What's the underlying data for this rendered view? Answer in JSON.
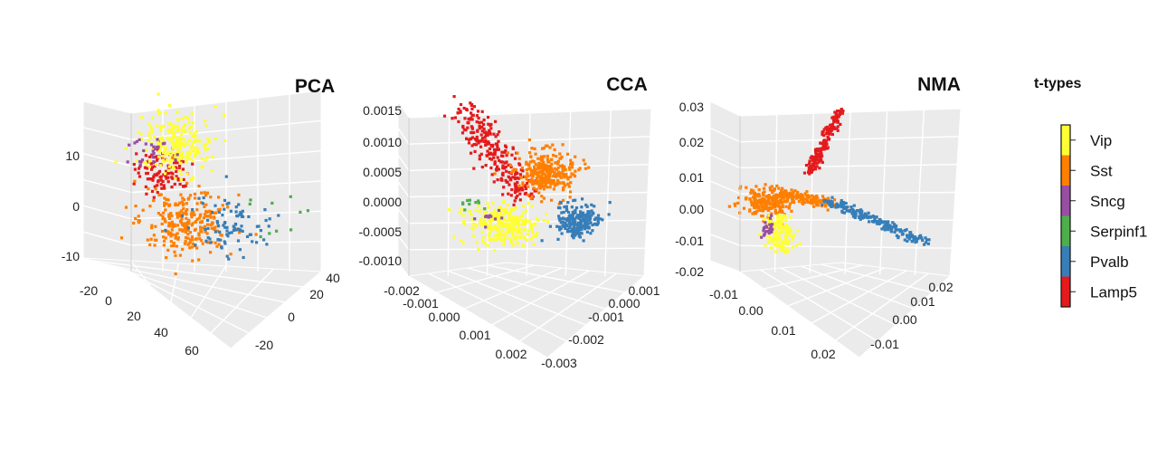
{
  "legend": {
    "title": "t-types",
    "items": [
      {
        "label": "Vip",
        "color": "#ffff33"
      },
      {
        "label": "Sst",
        "color": "#ff7f00"
      },
      {
        "label": "Sncg",
        "color": "#984ea3"
      },
      {
        "label": "Serpinf1",
        "color": "#4daf4a"
      },
      {
        "label": "Pvalb",
        "color": "#377eb8"
      },
      {
        "label": "Lamp5",
        "color": "#e41a1c"
      }
    ]
  },
  "chart_data": [
    {
      "type": "scatter",
      "title": "PCA",
      "axes": {
        "vertical": {
          "ticks": [
            "10",
            "0",
            "-10"
          ]
        },
        "left_depth": {
          "ticks": [
            "-20",
            "0",
            "20",
            "40",
            "60"
          ]
        },
        "right_depth": {
          "ticks": [
            "40",
            "20",
            "0",
            "-20"
          ]
        }
      },
      "clusters": [
        {
          "series": "Lamp5",
          "center": [
            -6,
            8,
            5
          ],
          "count": 110
        },
        {
          "series": "Vip",
          "center": [
            -2,
            6,
            15
          ],
          "count": 230
        },
        {
          "series": "Sst",
          "center": [
            0,
            4,
            -5
          ],
          "count": 270
        },
        {
          "series": "Pvalb",
          "center": [
            20,
            10,
            -6
          ],
          "count": 90
        },
        {
          "series": "Sncg",
          "center": [
            -8,
            4,
            10
          ],
          "count": 25
        },
        {
          "series": "Serpinf1",
          "center": [
            10,
            20,
            -2
          ],
          "count": 10
        }
      ]
    },
    {
      "type": "scatter",
      "title": "CCA",
      "axes": {
        "vertical": {
          "ticks": [
            "0.0015",
            "0.0010",
            "0.0005",
            "0.0000",
            "-0.0005",
            "-0.0010"
          ]
        },
        "left_depth": {
          "ticks": [
            "-0.002",
            "-0.001",
            "0.000",
            "0.001",
            "0.002"
          ]
        },
        "right_depth": {
          "ticks": [
            "0.001",
            "0.000",
            "-0.001",
            "-0.002",
            "-0.003"
          ]
        }
      },
      "clusters": [
        {
          "series": "Lamp5",
          "center": [
            -0.001,
            0.0007,
            0.0009
          ],
          "count": 260
        },
        {
          "series": "Sst",
          "center": [
            0.0005,
            0.0005,
            0.0006
          ],
          "count": 300
        },
        {
          "series": "Vip",
          "center": [
            0.0005,
            -0.001,
            -0.0004
          ],
          "count": 280
        },
        {
          "series": "Pvalb",
          "center": [
            0.0015,
            -0.0012,
            0.0002
          ],
          "count": 220
        },
        {
          "series": "Serpinf1",
          "center": [
            -0.0002,
            -0.0005,
            -0.0001
          ],
          "count": 10
        },
        {
          "series": "Sncg",
          "center": [
            0.0003,
            -0.0008,
            -0.0002
          ],
          "count": 10
        }
      ]
    },
    {
      "type": "scatter",
      "title": "NMA",
      "axes": {
        "vertical": {
          "ticks": [
            "0.03",
            "0.02",
            "0.01",
            "0.00",
            "-0.01",
            "-0.02"
          ]
        },
        "left_depth": {
          "ticks": [
            "-0.01",
            "0.00",
            "0.01",
            "0.02"
          ]
        },
        "right_depth": {
          "ticks": [
            "0.02",
            "0.01",
            "0.00",
            "-0.01"
          ]
        }
      },
      "clusters": [
        {
          "series": "Lamp5",
          "shape": "arm",
          "from": [
            0.0,
            0.005,
            0.005
          ],
          "to": [
            0.008,
            0.018,
            0.028
          ],
          "count": 170
        },
        {
          "series": "Sst",
          "shape": "blob",
          "center": [
            0.0,
            0.0,
            0.001
          ],
          "count": 230
        },
        {
          "series": "Sst",
          "shape": "arm",
          "from": [
            0.0,
            0.0,
            0.001
          ],
          "to": [
            0.012,
            0.005,
            -0.001
          ],
          "count": 120
        },
        {
          "series": "Pvalb",
          "shape": "arm",
          "from": [
            0.01,
            0.004,
            -0.001
          ],
          "to": [
            0.028,
            0.02,
            -0.012
          ],
          "count": 200
        },
        {
          "series": "Vip",
          "shape": "arm",
          "from": [
            0.0,
            0.0,
            -0.006
          ],
          "to": [
            0.004,
            0.004,
            -0.014
          ],
          "count": 130
        },
        {
          "series": "Sncg",
          "shape": "blob",
          "center": [
            -0.003,
            -0.003,
            -0.006
          ],
          "count": 25
        }
      ]
    }
  ]
}
